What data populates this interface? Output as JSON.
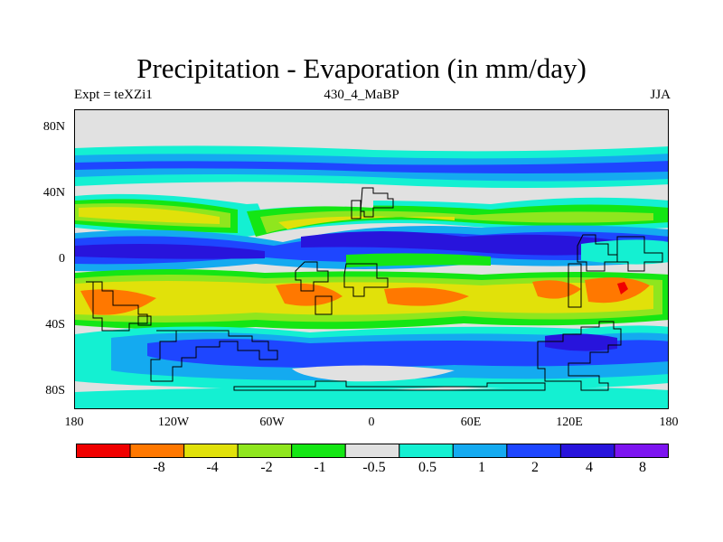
{
  "chart_data": {
    "type": "heatmap",
    "title": "Precipitation - Evaporation (in mm/day)",
    "subtitle_left": "Expt = teXZi1",
    "subtitle_center": "430_4_MaBP",
    "subtitle_right": "JJA",
    "y_ticks": [
      "80N",
      "40N",
      "0",
      "40S",
      "80S"
    ],
    "x_ticks": [
      "180",
      "120W",
      "60W",
      "0",
      "60E",
      "120E",
      "180"
    ],
    "colorbar": {
      "bins": [
        {
          "range": "< -8",
          "color": "#f00000"
        },
        {
          "range": "-8 to -4",
          "color": "#ff7800"
        },
        {
          "range": "-4 to -2",
          "color": "#e1e10a"
        },
        {
          "range": "-2 to -1",
          "color": "#8fe61e"
        },
        {
          "range": "-1 to -0.5",
          "color": "#14e614"
        },
        {
          "range": "-0.5 to 0.5",
          "color": "#e1e1e1"
        },
        {
          "range": "0.5 to 1",
          "color": "#14f0d2"
        },
        {
          "range": "1 to 2",
          "color": "#14aaf0"
        },
        {
          "range": "2 to 4",
          "color": "#1e46ff"
        },
        {
          "range": "4 to 8",
          "color": "#2814dc"
        },
        {
          "range": "> 8",
          "color": "#7d14f0"
        }
      ],
      "labels": [
        "-8",
        "-4",
        "-2",
        "-1",
        "-0.5",
        "0.5",
        "1",
        "2",
        "4",
        "8"
      ]
    },
    "bands_description": [
      {
        "lat_range": "90N-65N",
        "category": "-0.5 to 0.5"
      },
      {
        "lat_range": "65N-45N",
        "category": "1 to 4"
      },
      {
        "lat_range": "40N-20N",
        "category": "-4 to -1"
      },
      {
        "lat_range": "15N-5S",
        "category": "2 to 8"
      },
      {
        "lat_range": "10S-40S",
        "category": "-8 to -2"
      },
      {
        "lat_range": "45S-70S",
        "category": "1 to 4"
      },
      {
        "lat_range": "70S-90S",
        "category": "-0.5 to 2"
      }
    ]
  }
}
